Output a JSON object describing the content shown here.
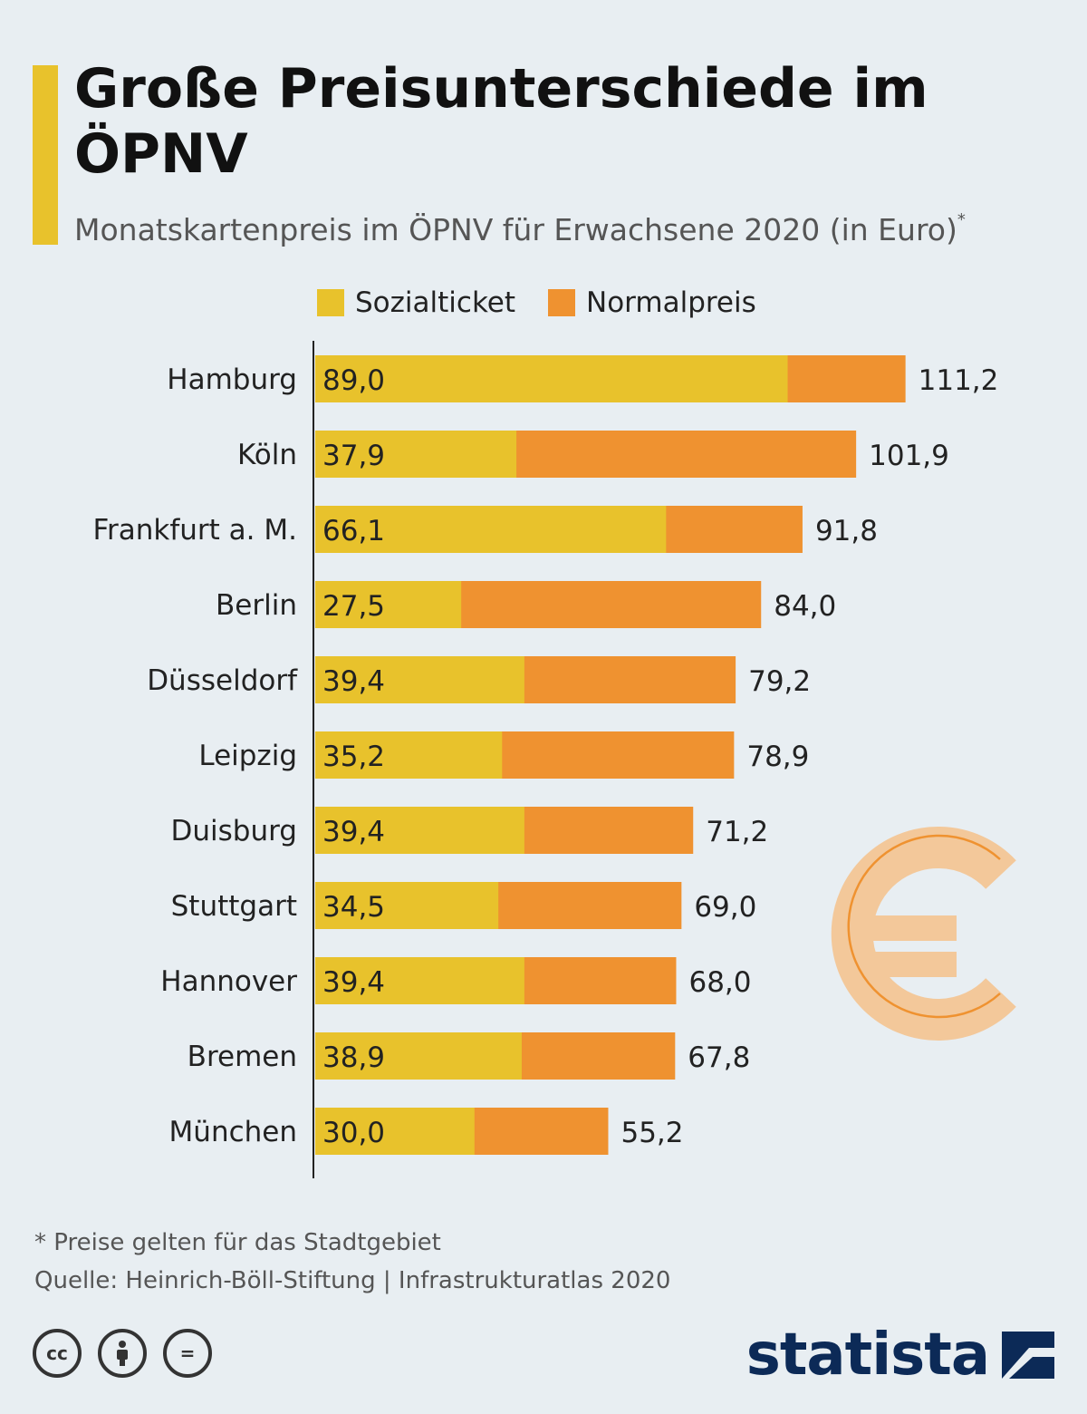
{
  "header": {
    "title": "Große Preisunterschiede im ÖPNV",
    "subtitle": "Monatskartenpreis im ÖPNV für Erwachsene 2020 (in Euro)",
    "subtitle_mark": "*"
  },
  "legend": {
    "social": "Sozialticket",
    "normal": "Normalpreis"
  },
  "colors": {
    "social": "#e8c22c",
    "normal": "#ef9230",
    "accent": "#e8c22c",
    "brand": "#0c2a57"
  },
  "chart_data": {
    "type": "bar",
    "orientation": "horizontal",
    "title": "Große Preisunterschiede im ÖPNV",
    "xlabel": "",
    "ylabel": "",
    "xlim": [
      0,
      111.2
    ],
    "categories": [
      "Hamburg",
      "Köln",
      "Frankfurt a. M.",
      "Berlin",
      "Düsseldorf",
      "Leipzig",
      "Duisburg",
      "Stuttgart",
      "Hannover",
      "Bremen",
      "München"
    ],
    "series": [
      {
        "name": "Sozialticket",
        "values": [
          89.0,
          37.9,
          66.1,
          27.5,
          39.4,
          35.2,
          39.4,
          34.5,
          39.4,
          38.9,
          30.0
        ],
        "labels": [
          "89,0",
          "37,9",
          "66,1",
          "27,5",
          "39,4",
          "35,2",
          "39,4",
          "34,5",
          "39,4",
          "38,9",
          "30,0"
        ]
      },
      {
        "name": "Normalpreis",
        "values": [
          111.2,
          101.9,
          91.8,
          84.0,
          79.2,
          78.9,
          71.2,
          69.0,
          68.0,
          67.8,
          55.2
        ],
        "labels": [
          "111,2",
          "101,9",
          "91,8",
          "84,0",
          "79,2",
          "78,9",
          "71,2",
          "69,0",
          "68,0",
          "67,8",
          "55,2"
        ]
      }
    ]
  },
  "footer": {
    "note": "* Preise gelten für das Stadtgebiet",
    "source": "Quelle: Heinrich-Böll-Stiftung | Infrastrukturatlas 2020",
    "license_icons": [
      "cc-icon",
      "by-icon",
      "nd-icon"
    ],
    "cc_text": "cc",
    "nd_text": "=",
    "brand": "statista"
  }
}
